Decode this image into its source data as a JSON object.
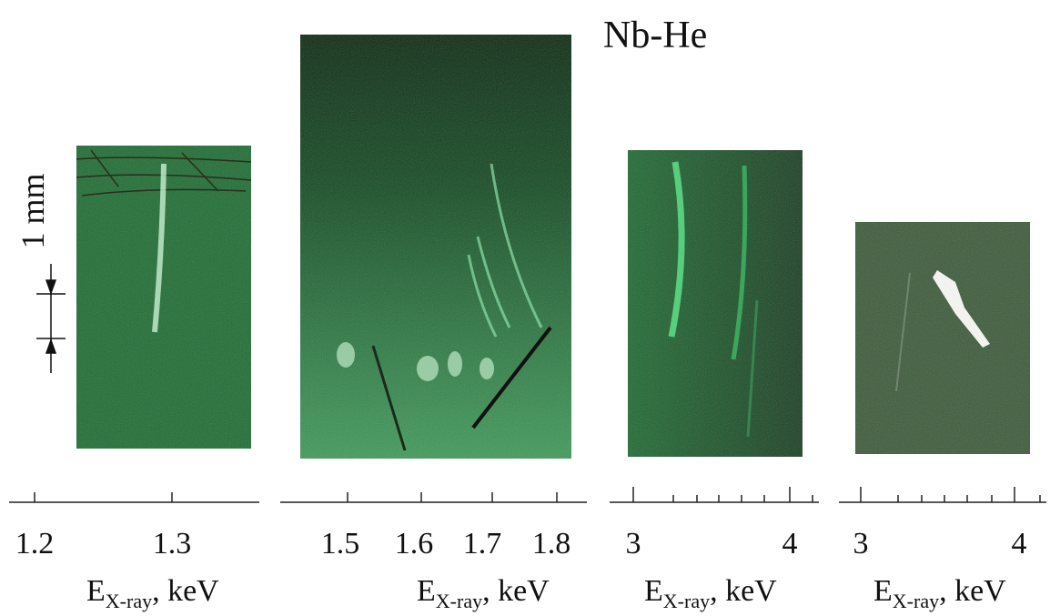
{
  "title": "Nb-He",
  "scale_bar": {
    "label": "1 mm"
  },
  "panels": [
    {
      "ticks": [
        "1.2",
        "1.3"
      ],
      "axis_label": {
        "symbol": "E",
        "subscript": "X-ray",
        "unit": ", keV"
      }
    },
    {
      "ticks": [
        "1.5",
        "1.6",
        "1.7",
        "1.8"
      ],
      "axis_label": {
        "symbol": "E",
        "subscript": "X-ray",
        "unit": ", keV"
      }
    },
    {
      "ticks": [
        "3",
        "4"
      ],
      "axis_label": {
        "symbol": "E",
        "subscript": "X-ray",
        "unit": ", keV"
      }
    },
    {
      "ticks": [
        "3",
        "4"
      ],
      "axis_label": {
        "symbol": "E",
        "subscript": "X-ray",
        "unit": ", keV"
      }
    }
  ]
}
